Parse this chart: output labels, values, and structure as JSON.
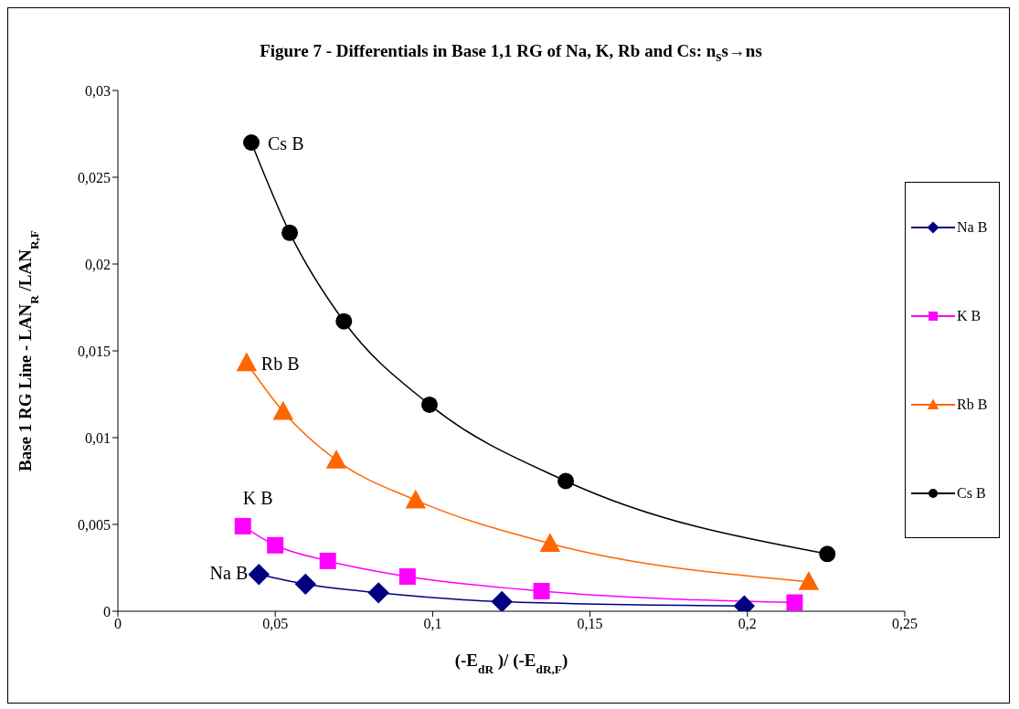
{
  "chart_data": {
    "type": "line",
    "title": "Figure 7 - Differentials in Base 1,1 RG of Na, K, Rb and Cs: n$_{s}$s→ns",
    "xlabel": "(-E$_{dR}$ )/ (-E$_{dR,F}$)",
    "ylabel": "Base 1 RG Line - LAN$_{R}$ /LAN$_{R,F}$",
    "xlim": [
      0,
      0.25
    ],
    "xticks": [
      0,
      {
        "value": 0.05,
        "label": "0,05"
      },
      {
        "value": 0.1,
        "label": "0,1"
      },
      {
        "value": 0.15,
        "label": "0,15"
      },
      {
        "value": 0.2,
        "label": "0,2"
      },
      {
        "value": 0.25,
        "label": "0,25"
      }
    ],
    "ylim": [
      0,
      0.03
    ],
    "yticks": [
      0,
      {
        "value": 0.005,
        "label": "0,005"
      },
      {
        "value": 0.01,
        "label": "0,01"
      },
      {
        "value": 0.015,
        "label": "0,015"
      },
      {
        "value": 0.02,
        "label": "0,02"
      },
      {
        "value": 0.025,
        "label": "0,025"
      },
      {
        "value": 0.03,
        "label": "0,03"
      }
    ],
    "legend": "right",
    "line_style": "solid",
    "series": [
      {
        "name": "Na B",
        "color": "#000080",
        "marker": "diamond",
        "x": [
          0.0448,
          0.0596,
          0.0828,
          0.122,
          0.199
        ],
        "values": [
          0.00212,
          0.00156,
          0.00106,
          0.00055,
          0.0003
        ]
      },
      {
        "name": "K B",
        "color": "#ff00ff",
        "marker": "square",
        "x": [
          0.0397,
          0.05,
          0.0667,
          0.092,
          0.1346,
          0.215
        ],
        "values": [
          0.0049,
          0.0038,
          0.0029,
          0.002,
          0.00116,
          0.0005
        ]
      },
      {
        "name": "Rb B",
        "color": "#ff6600",
        "marker": "triangle",
        "x": [
          0.0409,
          0.0525,
          0.0694,
          0.0946,
          0.1373,
          0.2195
        ],
        "values": [
          0.0143,
          0.0115,
          0.0087,
          0.0064,
          0.0039,
          0.0017
        ]
      },
      {
        "name": "Cs B",
        "color": "#000000",
        "marker": "circle",
        "x": [
          0.0424,
          0.0546,
          0.0718,
          0.099,
          0.1423,
          0.2254
        ],
        "values": [
          0.027,
          0.0218,
          0.0167,
          0.0119,
          0.0075,
          0.0033
        ]
      }
    ],
    "annotations": [
      {
        "text": "Na B",
        "x": 0.0448,
        "y": 0.00212
      },
      {
        "text": "K B",
        "x": 0.0397,
        "y": 0.0049
      },
      {
        "text": "Rb B",
        "x": 0.0409,
        "y": 0.0143
      },
      {
        "text": "Cs B",
        "x": 0.0424,
        "y": 0.027
      }
    ]
  }
}
